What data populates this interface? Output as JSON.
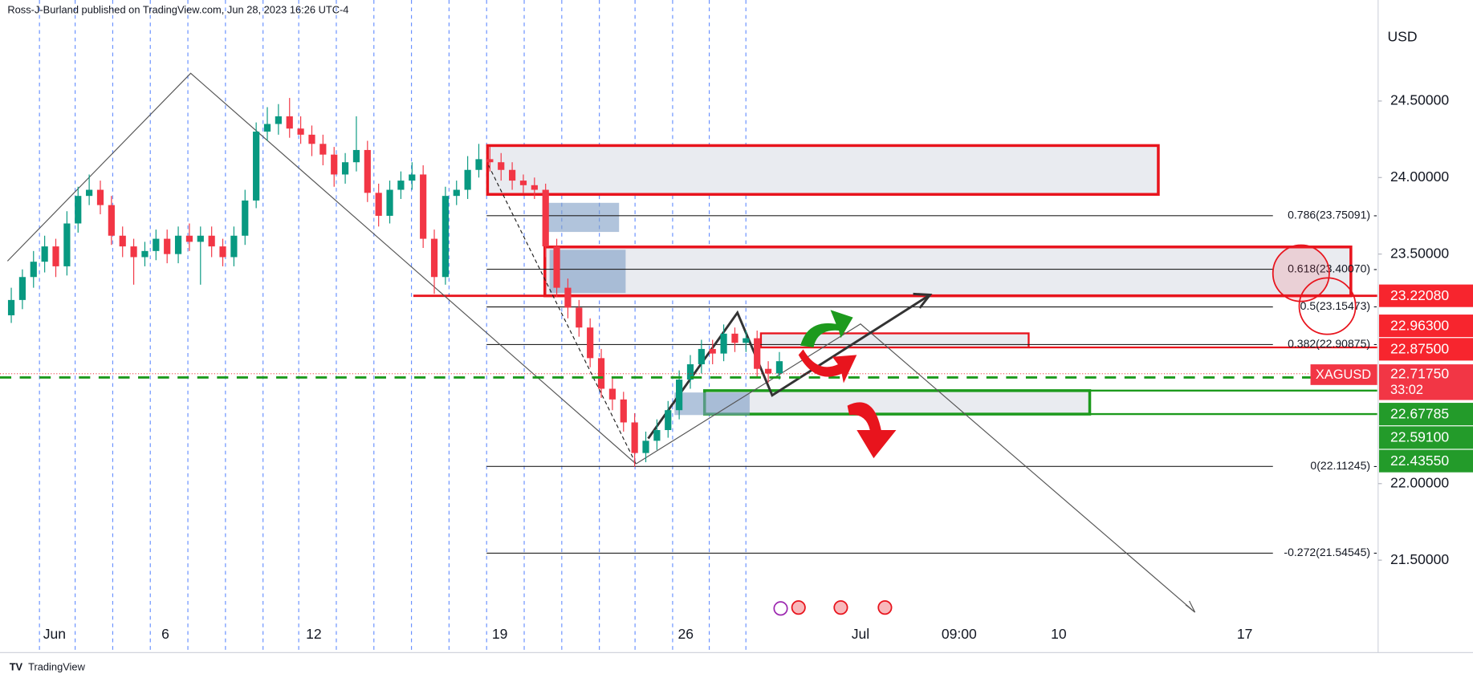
{
  "header": {
    "publisher": "Ross-J-Burland published on TradingView.com, Jun 28, 2023 16:26 UTC-4",
    "currency": "USD",
    "footer": "TradingView"
  },
  "chart_data": {
    "type": "candlestick",
    "symbol": "XAGUSD",
    "countdown": "33:02",
    "up_color": "#089981",
    "down_color": "#f23645",
    "ylim": [
      20.896,
      25.16
    ],
    "yticks": [
      {
        "value": 24.5,
        "label": "24.50000"
      },
      {
        "value": 24.0,
        "label": "24.00000"
      },
      {
        "value": 23.5,
        "label": "23.50000"
      },
      {
        "value": 22.0,
        "label": "22.00000"
      },
      {
        "value": 21.5,
        "label": "21.50000"
      }
    ],
    "xticks": [
      "Jun",
      "6",
      "12",
      "19",
      "26",
      "Jul",
      "09:00",
      "10",
      "17"
    ],
    "ohlc": [
      [
        23.1,
        23.28,
        23.05,
        23.2
      ],
      [
        23.2,
        23.4,
        23.14,
        23.35
      ],
      [
        23.35,
        23.52,
        23.28,
        23.45
      ],
      [
        23.45,
        23.62,
        23.38,
        23.55
      ],
      [
        23.55,
        23.6,
        23.35,
        23.42
      ],
      [
        23.42,
        23.78,
        23.36,
        23.7
      ],
      [
        23.7,
        23.94,
        23.64,
        23.88
      ],
      [
        23.88,
        24.02,
        23.82,
        23.92
      ],
      [
        23.92,
        23.98,
        23.76,
        23.82
      ],
      [
        23.82,
        23.88,
        23.56,
        23.62
      ],
      [
        23.62,
        23.68,
        23.48,
        23.55
      ],
      [
        23.55,
        23.6,
        23.3,
        23.48
      ],
      [
        23.48,
        23.58,
        23.42,
        23.52
      ],
      [
        23.52,
        23.66,
        23.46,
        23.6
      ],
      [
        23.6,
        23.66,
        23.44,
        23.5
      ],
      [
        23.5,
        23.68,
        23.44,
        23.62
      ],
      [
        23.62,
        23.7,
        23.52,
        23.58
      ],
      [
        23.58,
        23.68,
        23.3,
        23.62
      ],
      [
        23.62,
        23.68,
        23.48,
        23.55
      ],
      [
        23.55,
        23.6,
        23.42,
        23.48
      ],
      [
        23.48,
        23.68,
        23.42,
        23.62
      ],
      [
        23.62,
        23.92,
        23.56,
        23.85
      ],
      [
        23.85,
        24.36,
        23.8,
        24.3
      ],
      [
        24.3,
        24.46,
        24.24,
        24.35
      ],
      [
        24.35,
        24.48,
        24.28,
        24.4
      ],
      [
        24.4,
        24.52,
        24.26,
        24.32
      ],
      [
        24.32,
        24.4,
        24.22,
        24.28
      ],
      [
        24.28,
        24.34,
        24.14,
        24.22
      ],
      [
        24.22,
        24.28,
        24.08,
        24.15
      ],
      [
        24.15,
        24.2,
        23.94,
        24.02
      ],
      [
        24.02,
        24.16,
        23.96,
        24.1
      ],
      [
        24.1,
        24.4,
        24.04,
        24.18
      ],
      [
        24.18,
        24.24,
        23.84,
        23.9
      ],
      [
        23.9,
        23.96,
        23.68,
        23.75
      ],
      [
        23.75,
        23.98,
        23.7,
        23.92
      ],
      [
        23.92,
        24.04,
        23.86,
        23.98
      ],
      [
        23.98,
        24.1,
        23.92,
        24.02
      ],
      [
        24.02,
        24.08,
        23.54,
        23.6
      ],
      [
        23.6,
        23.66,
        23.24,
        23.35
      ],
      [
        23.35,
        23.94,
        23.3,
        23.88
      ],
      [
        23.88,
        23.98,
        23.82,
        23.92
      ],
      [
        23.92,
        24.14,
        23.86,
        24.05
      ],
      [
        24.05,
        24.22,
        24.0,
        24.12
      ],
      [
        24.12,
        24.2,
        24.04,
        24.1
      ],
      [
        24.1,
        24.16,
        23.98,
        24.05
      ],
      [
        24.05,
        24.1,
        23.92,
        23.98
      ],
      [
        23.98,
        24.02,
        23.9,
        23.95
      ],
      [
        23.95,
        24.0,
        23.86,
        23.92
      ],
      [
        23.92,
        23.96,
        23.48,
        23.55
      ],
      [
        23.55,
        23.6,
        23.22,
        23.28
      ],
      [
        23.28,
        23.34,
        23.08,
        23.15
      ],
      [
        23.15,
        23.2,
        22.96,
        23.02
      ],
      [
        23.02,
        23.08,
        22.76,
        22.82
      ],
      [
        22.82,
        22.88,
        22.56,
        22.62
      ],
      [
        22.62,
        22.7,
        22.48,
        22.55
      ],
      [
        22.55,
        22.6,
        22.34,
        22.4
      ],
      [
        22.4,
        22.46,
        22.11,
        22.2
      ],
      [
        22.2,
        22.34,
        22.14,
        22.28
      ],
      [
        22.28,
        22.42,
        22.22,
        22.35
      ],
      [
        22.35,
        22.54,
        22.3,
        22.48
      ],
      [
        22.48,
        22.74,
        22.42,
        22.68
      ],
      [
        22.68,
        22.84,
        22.62,
        22.78
      ],
      [
        22.78,
        22.94,
        22.72,
        22.88
      ],
      [
        22.88,
        22.94,
        22.78,
        22.85
      ],
      [
        22.85,
        23.04,
        22.8,
        22.98
      ],
      [
        22.98,
        23.02,
        22.86,
        22.92
      ],
      [
        22.92,
        23.0,
        22.86,
        22.95
      ],
      [
        22.95,
        23.0,
        22.7,
        22.75
      ],
      [
        22.75,
        22.8,
        22.66,
        22.72
      ],
      [
        22.72,
        22.86,
        22.68,
        22.8
      ]
    ],
    "fib_levels": [
      {
        "value": 23.75091,
        "label": "0.786(23.75091) -"
      },
      {
        "value": 23.4007,
        "label": "0.618(23.40070) -"
      },
      {
        "value": 23.15473,
        "label": "0.5(23.15473) -"
      },
      {
        "value": 22.90875,
        "label": "0.382(22.90875) -"
      },
      {
        "value": 22.11245,
        "label": "0(22.11245) -"
      },
      {
        "value": 21.54545,
        "label": "-0.272(21.54545) -"
      }
    ],
    "last_price": {
      "value": 22.7175,
      "label": "22.71750"
    },
    "price_tags": [
      {
        "label": "23.22080",
        "color": "#f7252e"
      },
      {
        "label": "22.96300",
        "color": "#f7252e"
      },
      {
        "label": "22.87500",
        "color": "#f7252e"
      },
      {
        "label": "22.67785",
        "color": "#239b2a"
      },
      {
        "label": "22.59100",
        "color": "#239b2a"
      },
      {
        "label": "22.43550",
        "color": "#239b2a"
      }
    ]
  }
}
